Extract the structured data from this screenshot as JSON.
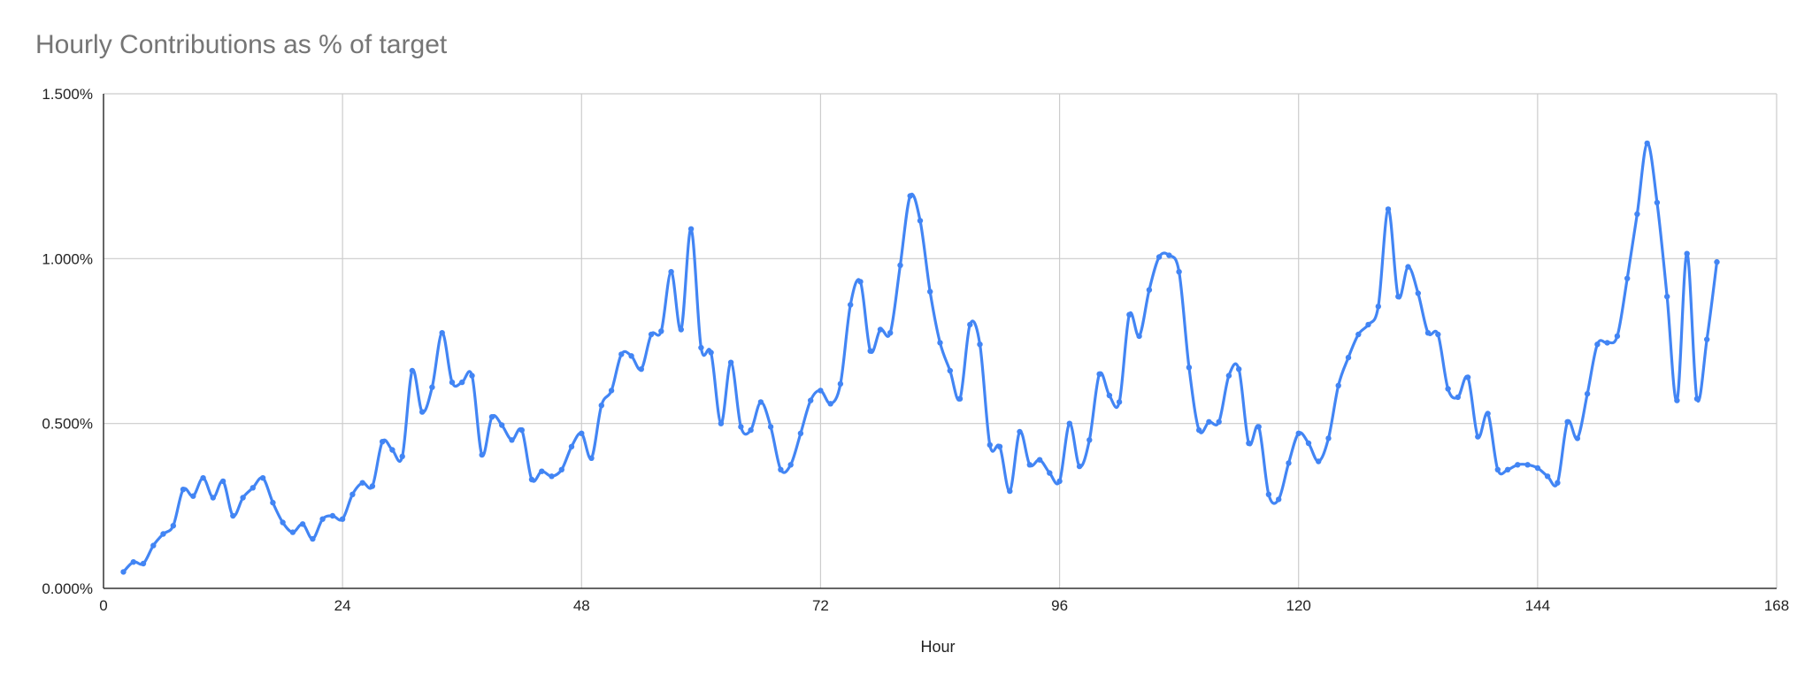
{
  "chart_data": {
    "type": "line",
    "title": "Hourly Contributions as % of target",
    "xlabel": "Hour",
    "ylabel": "",
    "xlim": [
      0,
      168
    ],
    "ylim": [
      0,
      1.5
    ],
    "x_ticks": [
      "0",
      "24",
      "48",
      "72",
      "96",
      "120",
      "144",
      "168"
    ],
    "y_ticks": [
      "0.000%",
      "0.500%",
      "1.000%",
      "1.500%"
    ],
    "grid": true,
    "legend": "none",
    "line_color": "#4285f4",
    "series": [
      {
        "x": [
          2,
          3,
          4,
          5,
          6,
          7,
          8,
          9,
          10,
          11,
          12,
          13,
          14,
          15,
          16,
          17,
          18,
          19,
          20,
          21,
          22,
          23,
          24,
          25,
          26,
          27,
          28,
          29,
          30,
          31,
          32,
          33,
          34,
          35,
          36,
          37,
          38,
          39,
          40,
          41,
          42,
          43,
          44,
          45,
          46,
          47,
          48,
          49,
          50,
          51,
          52,
          53,
          54,
          55,
          56,
          57,
          58,
          59,
          60,
          61,
          62,
          63,
          64,
          65,
          66,
          67,
          68,
          69,
          70,
          71,
          72,
          73,
          74,
          75,
          76,
          77,
          78,
          79,
          80,
          81,
          82,
          83,
          84,
          85,
          86,
          87,
          88,
          89,
          90,
          91,
          92,
          93,
          94,
          95,
          96,
          97,
          98,
          99,
          100,
          101,
          102,
          103,
          104,
          105,
          106,
          107,
          108,
          109,
          110,
          111,
          112,
          113,
          114,
          115,
          116,
          117,
          118,
          119,
          120,
          121,
          122,
          123,
          124,
          125,
          126,
          127,
          128,
          129,
          130,
          131,
          132,
          133,
          134,
          135,
          136,
          137,
          138,
          139,
          140,
          141,
          142,
          143,
          144,
          145,
          146,
          147,
          148,
          149,
          150,
          151,
          152,
          153,
          154,
          155,
          156,
          157,
          158,
          159,
          160,
          161,
          162
        ],
        "values": [
          0.05,
          0.08,
          0.075,
          0.13,
          0.165,
          0.19,
          0.3,
          0.28,
          0.335,
          0.275,
          0.325,
          0.22,
          0.275,
          0.305,
          0.335,
          0.26,
          0.2,
          0.17,
          0.195,
          0.15,
          0.21,
          0.22,
          0.21,
          0.285,
          0.32,
          0.31,
          0.445,
          0.42,
          0.4,
          0.66,
          0.535,
          0.61,
          0.775,
          0.625,
          0.625,
          0.645,
          0.405,
          0.52,
          0.495,
          0.45,
          0.48,
          0.33,
          0.355,
          0.34,
          0.36,
          0.43,
          0.47,
          0.395,
          0.555,
          0.6,
          0.71,
          0.705,
          0.665,
          0.77,
          0.78,
          0.96,
          0.785,
          1.09,
          0.73,
          0.715,
          0.5,
          0.685,
          0.49,
          0.48,
          0.565,
          0.49,
          0.36,
          0.375,
          0.47,
          0.57,
          0.6,
          0.56,
          0.62,
          0.86,
          0.93,
          0.72,
          0.785,
          0.775,
          0.98,
          1.19,
          1.115,
          0.9,
          0.745,
          0.66,
          0.575,
          0.8,
          0.74,
          0.435,
          0.43,
          0.295,
          0.475,
          0.375,
          0.39,
          0.35,
          0.325,
          0.5,
          0.37,
          0.45,
          0.65,
          0.585,
          0.565,
          0.83,
          0.765,
          0.905,
          1.005,
          1.01,
          0.96,
          0.67,
          0.48,
          0.505,
          0.505,
          0.645,
          0.665,
          0.44,
          0.49,
          0.285,
          0.27,
          0.38,
          0.47,
          0.44,
          0.385,
          0.455,
          0.615,
          0.7,
          0.77,
          0.8,
          0.855,
          1.15,
          0.885,
          0.975,
          0.895,
          0.775,
          0.77,
          0.605,
          0.58,
          0.64,
          0.46,
          0.53,
          0.36,
          0.36,
          0.375,
          0.375,
          0.365,
          0.34,
          0.32,
          0.505,
          0.455,
          0.59,
          0.74,
          0.745,
          0.765,
          0.94,
          1.135,
          1.35,
          1.17,
          0.885,
          0.57,
          1.015,
          0.575,
          0.755,
          0.99
        ]
      }
    ]
  }
}
